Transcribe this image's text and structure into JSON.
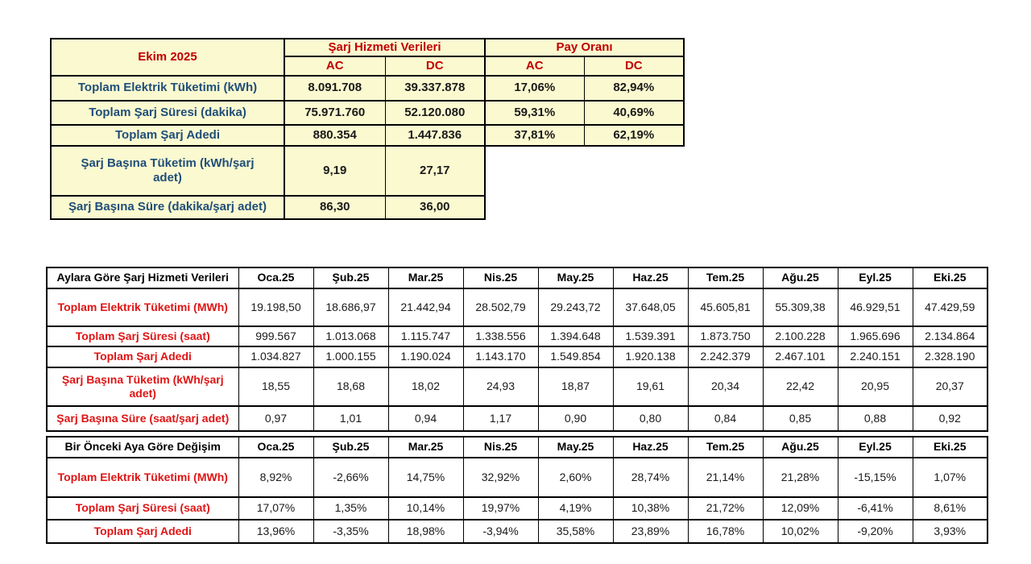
{
  "colors": {
    "summary_fill": "#fbf9d0",
    "summary_header_text": "#c00000",
    "summary_label_text": "#1f4e79",
    "row_label_red": "#e01414",
    "border": "#000000"
  },
  "summary_table": {
    "title": "Ekim 2025",
    "group1": "Şarj Hizmeti Verileri",
    "group2": "Pay Oranı",
    "subheaders": [
      "AC",
      "DC",
      "AC",
      "DC"
    ],
    "rows": [
      {
        "label": "Toplam Elektrik Tüketimi (kWh)",
        "values": [
          "8.091.708",
          "39.337.878",
          "17,06%",
          "82,94%"
        ]
      },
      {
        "label": "Toplam Şarj Süresi (dakika)",
        "values": [
          "75.971.760",
          "52.120.080",
          "59,31%",
          "40,69%"
        ]
      },
      {
        "label": "Toplam Şarj Adedi",
        "values": [
          "880.354",
          "1.447.836",
          "37,81%",
          "62,19%"
        ]
      },
      {
        "label": "Şarj Başına Tüketim (kWh/şarj adet)",
        "values": [
          "9,19",
          "27,17"
        ]
      },
      {
        "label": "Şarj Başına Süre (dakika/şarj adet)",
        "values": [
          "86,30",
          "36,00"
        ]
      }
    ]
  },
  "monthly_table": {
    "header": "Aylara Göre Şarj Hizmeti Verileri",
    "months": [
      "Oca.25",
      "Şub.25",
      "Mar.25",
      "Nis.25",
      "May.25",
      "Haz.25",
      "Tem.25",
      "Ağu.25",
      "Eyl.25",
      "Eki.25"
    ],
    "rows": [
      {
        "label": "Toplam Elektrik Tüketimi (MWh)",
        "values": [
          "19.198,50",
          "18.686,97",
          "21.442,94",
          "28.502,79",
          "29.243,72",
          "37.648,05",
          "45.605,81",
          "55.309,38",
          "46.929,51",
          "47.429,59"
        ]
      },
      {
        "label": "Toplam Şarj Süresi (saat)",
        "values": [
          "999.567",
          "1.013.068",
          "1.115.747",
          "1.338.556",
          "1.394.648",
          "1.539.391",
          "1.873.750",
          "2.100.228",
          "1.965.696",
          "2.134.864"
        ]
      },
      {
        "label": "Toplam Şarj Adedi",
        "values": [
          "1.034.827",
          "1.000.155",
          "1.190.024",
          "1.143.170",
          "1.549.854",
          "1.920.138",
          "2.242.379",
          "2.467.101",
          "2.240.151",
          "2.328.190"
        ]
      },
      {
        "label": "Şarj Başına Tüketim (kWh/şarj adet)",
        "values": [
          "18,55",
          "18,68",
          "18,02",
          "24,93",
          "18,87",
          "19,61",
          "20,34",
          "22,42",
          "20,95",
          "20,37"
        ]
      },
      {
        "label": "Şarj Başına Süre (saat/şarj adet)",
        "values": [
          "0,97",
          "1,01",
          "0,94",
          "1,17",
          "0,90",
          "0,80",
          "0,84",
          "0,85",
          "0,88",
          "0,92"
        ]
      }
    ]
  },
  "change_table": {
    "header": "Bir Önceki Aya Göre Değişim",
    "months": [
      "Oca.25",
      "Şub.25",
      "Mar.25",
      "Nis.25",
      "May.25",
      "Haz.25",
      "Tem.25",
      "Ağu.25",
      "Eyl.25",
      "Eki.25"
    ],
    "rows": [
      {
        "label": "Toplam Elektrik Tüketimi (MWh)",
        "values": [
          "8,92%",
          "-2,66%",
          "14,75%",
          "32,92%",
          "2,60%",
          "28,74%",
          "21,14%",
          "21,28%",
          "-15,15%",
          "1,07%"
        ]
      },
      {
        "label": "Toplam Şarj Süresi (saat)",
        "values": [
          "17,07%",
          "1,35%",
          "10,14%",
          "19,97%",
          "4,19%",
          "10,38%",
          "21,72%",
          "12,09%",
          "-6,41%",
          "8,61%"
        ]
      },
      {
        "label": "Toplam Şarj Adedi",
        "values": [
          "13,96%",
          "-3,35%",
          "18,98%",
          "-3,94%",
          "35,58%",
          "23,89%",
          "16,78%",
          "10,02%",
          "-9,20%",
          "3,93%"
        ]
      }
    ]
  }
}
